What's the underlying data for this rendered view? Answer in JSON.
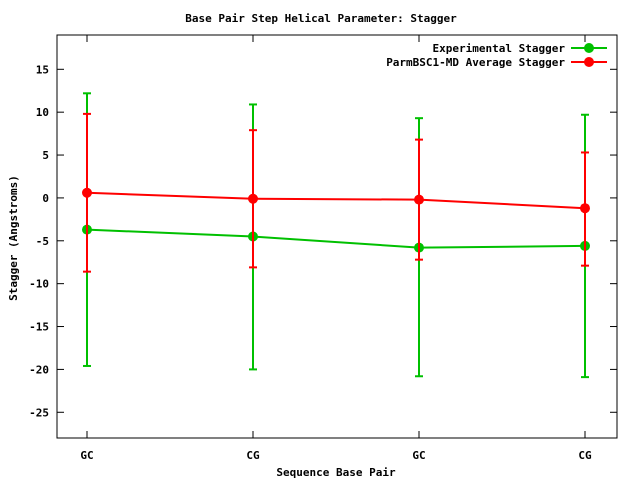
{
  "chart_data": {
    "type": "line",
    "title": "Base Pair Step Helical Parameter: Stagger",
    "xlabel": "Sequence Base Pair",
    "ylabel": "Stagger (Angstroms)",
    "categories": [
      "GC",
      "CG",
      "GC",
      "CG"
    ],
    "ylim": [
      -28,
      19
    ],
    "yticks": [
      15,
      10,
      5,
      0,
      -5,
      -10,
      -15,
      -20,
      -25
    ],
    "grid": false,
    "legend_position": "top-right",
    "series": [
      {
        "name": "Experimental Stagger",
        "color": "#00c000",
        "values": [
          -3.7,
          -4.5,
          -5.8,
          -5.6
        ],
        "err_low": [
          -19.6,
          -20.0,
          -20.8,
          -20.9
        ],
        "err_high": [
          12.2,
          10.9,
          9.3,
          9.7
        ]
      },
      {
        "name": "ParmBSC1-MD Average Stagger",
        "color": "#ff0000",
        "values": [
          0.6,
          -0.1,
          -0.2,
          -1.2
        ],
        "err_low": [
          -8.6,
          -8.1,
          -7.2,
          -7.9
        ],
        "err_high": [
          9.8,
          7.9,
          6.8,
          5.3
        ]
      }
    ]
  }
}
